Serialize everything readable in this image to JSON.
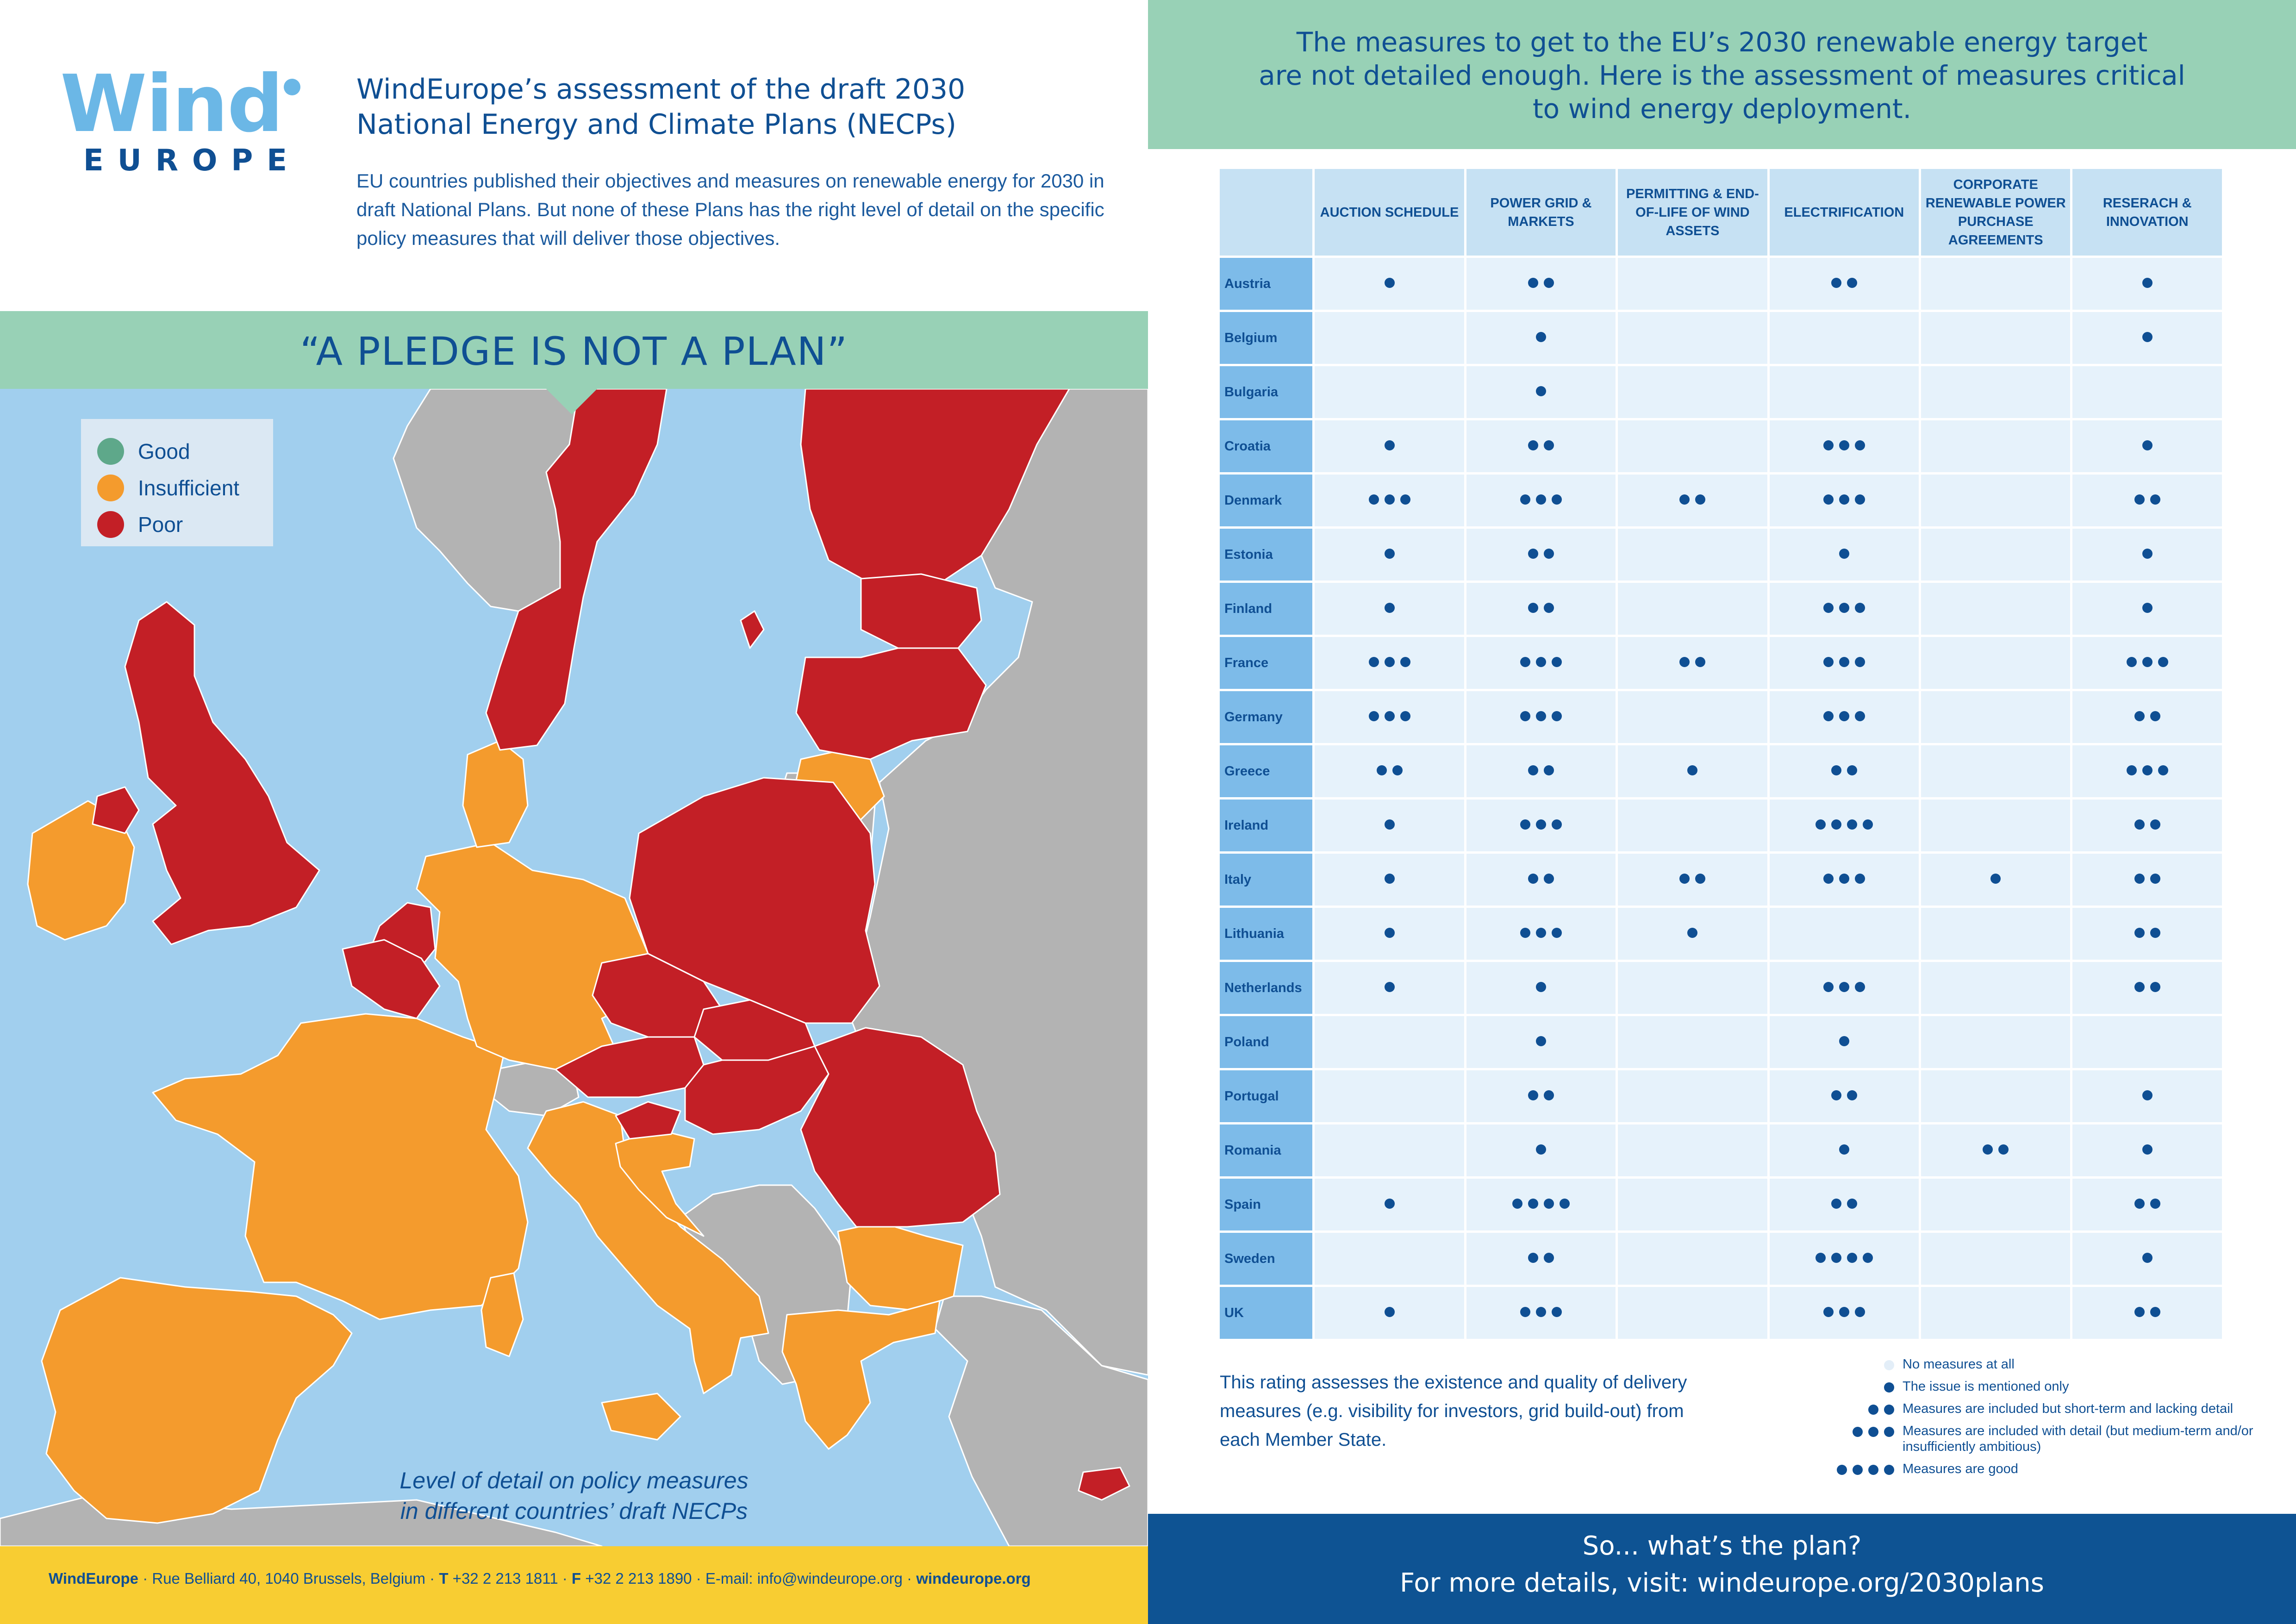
{
  "brand": {
    "logo_word_top": "Wind",
    "logo_word_bottom": "EUROPE",
    "logo_color": "#6bb7e6",
    "primary_color": "#0f4f93"
  },
  "intro": {
    "title_line1": "WindEurope’s assessment of the draft 2030",
    "title_line2": "National Energy and Climate Plans (NECPs)",
    "body": "EU countries published their objectives and measures on renewable energy for 2030 in draft National Plans. But none of these Plans has the right level of detail on the specific policy measures that will deliver those objectives."
  },
  "map": {
    "headline": "“A PLEDGE IS NOT A PLAN”",
    "legend": [
      {
        "label": "Good",
        "color": "#5ea88a"
      },
      {
        "label": "Insufficient",
        "color": "#f49b2d"
      },
      {
        "label": "Poor",
        "color": "#c31f26"
      }
    ],
    "colors": {
      "sea": "#a1cfee",
      "non_eu": "#b3b3b3",
      "good": "#5ea88a",
      "insufficient": "#f49b2d",
      "poor": "#c31f26"
    },
    "ratings": {
      "Poor": [
        "UK",
        "Belgium",
        "Netherlands",
        "Sweden",
        "Finland",
        "Estonia",
        "Latvia",
        "Poland",
        "Czech Republic",
        "Austria",
        "Slovakia",
        "Hungary",
        "Romania",
        "Slovenia",
        "Cyprus"
      ],
      "Insufficient": [
        "Ireland",
        "France",
        "Spain",
        "Portugal",
        "Germany",
        "Denmark",
        "Lithuania",
        "Italy",
        "Croatia",
        "Greece",
        "Bulgaria"
      ]
    },
    "caption_line1": "Level of detail on policy measures",
    "caption_line2": "in different countries’ draft NECPs"
  },
  "footer_left": {
    "org": "WindEurope",
    "address": " · Rue Belliard 40, 1040 Brussels, Belgium · ",
    "phone_label": "T",
    "phone": " +32 2 213 1811 · ",
    "fax_label": "F",
    "fax": " +32 2 213 1890 · E-mail: info@windeurope.org · ",
    "website": "windeurope.org"
  },
  "headline_right": {
    "line1": "The measures to get to the EU’s 2030 renewable energy target",
    "line2": "are not detailed enough. Here is the assessment of measures critical",
    "line3": "to wind energy deployment."
  },
  "table": {
    "columns": [
      "AUCTION SCHEDULE",
      "POWER GRID & MARKETS",
      "PERMITTING & END-OF-LIFE OF WIND ASSETS",
      "ELECTRIFICATION",
      "CORPORATE RENEWABLE POWER PURCHASE AGREEMENTS",
      "RESERACH & INNOVATION"
    ],
    "rows": [
      {
        "country": "Austria",
        "scores": [
          1,
          2,
          0,
          2,
          0,
          1
        ]
      },
      {
        "country": "Belgium",
        "scores": [
          0,
          1,
          0,
          0,
          0,
          1
        ]
      },
      {
        "country": "Bulgaria",
        "scores": [
          0,
          1,
          0,
          0,
          0,
          0
        ]
      },
      {
        "country": "Croatia",
        "scores": [
          1,
          2,
          0,
          3,
          0,
          1
        ]
      },
      {
        "country": "Denmark",
        "scores": [
          3,
          3,
          2,
          3,
          0,
          2
        ]
      },
      {
        "country": "Estonia",
        "scores": [
          1,
          2,
          0,
          1,
          0,
          1
        ]
      },
      {
        "country": "Finland",
        "scores": [
          1,
          2,
          0,
          3,
          0,
          1
        ]
      },
      {
        "country": "France",
        "scores": [
          3,
          3,
          2,
          3,
          0,
          3
        ]
      },
      {
        "country": "Germany",
        "scores": [
          3,
          3,
          0,
          3,
          0,
          2
        ]
      },
      {
        "country": "Greece",
        "scores": [
          2,
          2,
          1,
          2,
          0,
          3
        ]
      },
      {
        "country": "Ireland",
        "scores": [
          1,
          3,
          0,
          4,
          0,
          2
        ]
      },
      {
        "country": "Italy",
        "scores": [
          1,
          2,
          2,
          3,
          1,
          2
        ]
      },
      {
        "country": "Lithuania",
        "scores": [
          1,
          3,
          1,
          0,
          0,
          2
        ]
      },
      {
        "country": "Netherlands",
        "scores": [
          1,
          1,
          0,
          3,
          0,
          2
        ]
      },
      {
        "country": "Poland",
        "scores": [
          0,
          1,
          0,
          1,
          0,
          0
        ]
      },
      {
        "country": "Portugal",
        "scores": [
          0,
          2,
          0,
          2,
          0,
          1
        ]
      },
      {
        "country": "Romania",
        "scores": [
          0,
          1,
          0,
          1,
          2,
          1
        ]
      },
      {
        "country": "Spain",
        "scores": [
          1,
          4,
          0,
          2,
          0,
          2
        ]
      },
      {
        "country": "Sweden",
        "scores": [
          0,
          2,
          0,
          4,
          0,
          1
        ]
      },
      {
        "country": "UK",
        "scores": [
          1,
          3,
          0,
          3,
          0,
          2
        ]
      }
    ]
  },
  "rating_note": "This rating assesses the existence and quality of delivery measures (e.g. visibility for investors, grid build-out) from each Member State.",
  "key": [
    {
      "dots": 0,
      "label": "No measures at all"
    },
    {
      "dots": 1,
      "label": "The issue is mentioned only"
    },
    {
      "dots": 2,
      "label": "Measures are included but short-term and lacking detail"
    },
    {
      "dots": 3,
      "label": "Measures are included with detail (but medium-term and/or insufficiently ambitious)"
    },
    {
      "dots": 4,
      "label": "Measures are good"
    }
  ],
  "footer_right": {
    "line1": "So... what’s the plan?",
    "line2": "For more details, visit: windeurope.org/2030plans"
  }
}
